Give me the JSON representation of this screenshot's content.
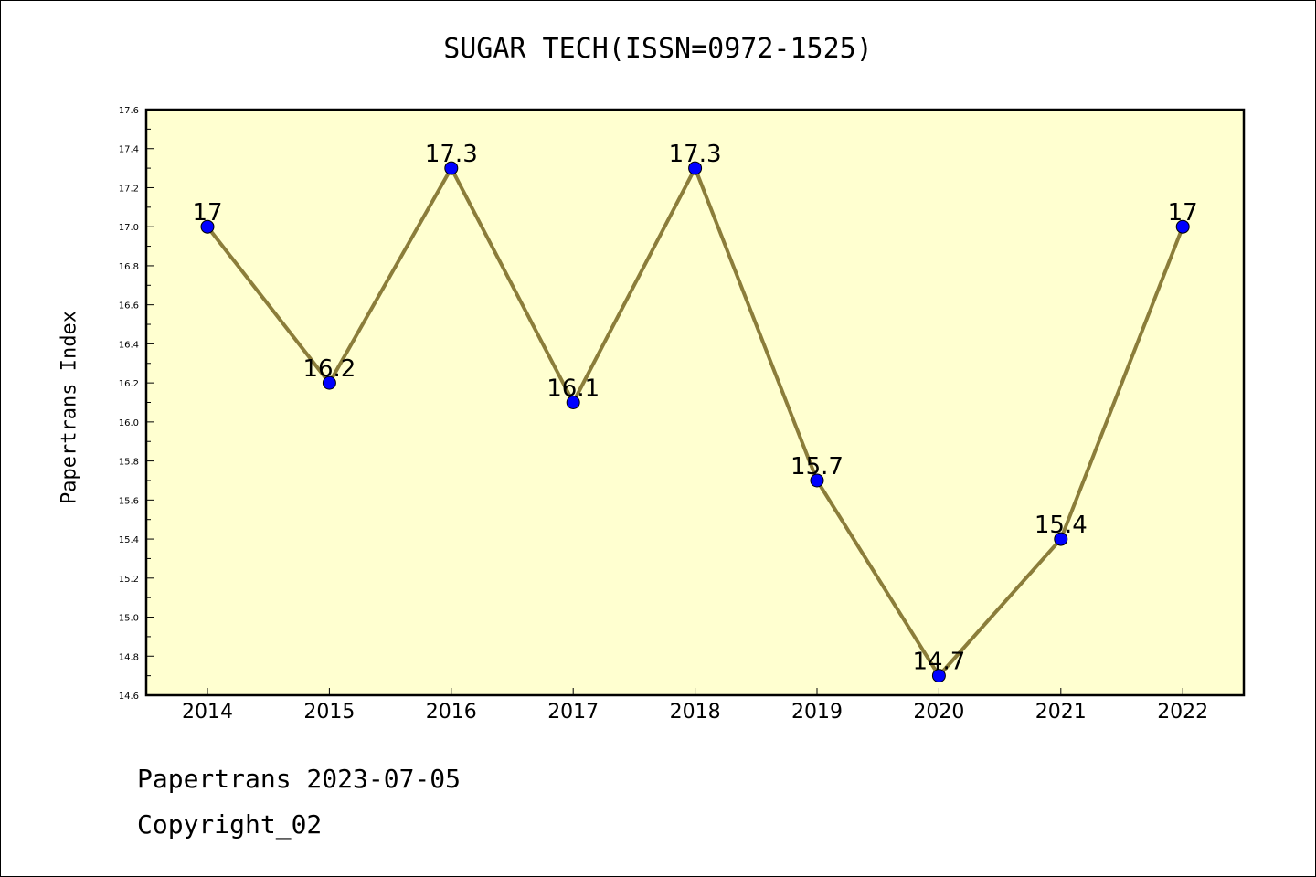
{
  "title": "SUGAR TECH(ISSN=0972-1525)",
  "footer": {
    "line1": "Papertrans 2023-07-05",
    "line2": "Copyright_02"
  },
  "colors": {
    "plot_background": "#ffffd0",
    "line": "#8b7d3a",
    "marker": "#0000ff"
  },
  "chart_data": {
    "type": "line",
    "title": "SUGAR TECH(ISSN=0972-1525)",
    "xlabel": "",
    "ylabel": "Papertrans Index",
    "categories": [
      "2014",
      "2015",
      "2016",
      "2017",
      "2018",
      "2019",
      "2020",
      "2021",
      "2022"
    ],
    "values": [
      17,
      16.2,
      17.3,
      16.1,
      17.3,
      15.7,
      14.7,
      15.4,
      17
    ],
    "data_labels": [
      "17",
      "16.2",
      "17.3",
      "16.1",
      "17.3",
      "15.7",
      "14.7",
      "15.4",
      "17"
    ],
    "ylim": [
      14.6,
      17.6
    ],
    "yticks": [
      "14.6",
      "14.8",
      "15.0",
      "15.2",
      "15.4",
      "15.6",
      "15.8",
      "16.0",
      "16.2",
      "16.4",
      "16.6",
      "16.8",
      "17.0",
      "17.2",
      "17.4",
      "17.6"
    ],
    "grid": false,
    "legend": "none"
  }
}
